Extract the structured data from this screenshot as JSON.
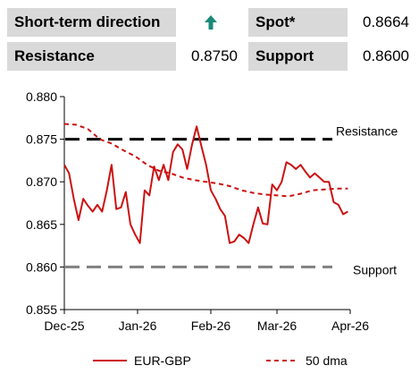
{
  "table": {
    "short_term_label": "Short-term direction",
    "direction_icon": "up-arrow-icon",
    "direction_color": "#1a8a7a",
    "spot_label": "Spot*",
    "spot_value": "0.8664",
    "resistance_label": "Resistance",
    "resistance_value": "0.8750",
    "support_label": "Support",
    "support_value": "0.8600"
  },
  "chart_data": {
    "type": "line",
    "ylim": [
      0.855,
      0.88
    ],
    "yticks": [
      "0.880",
      "0.875",
      "0.870",
      "0.865",
      "0.860",
      "0.855"
    ],
    "ytick_values": [
      0.88,
      0.875,
      0.87,
      0.865,
      0.86,
      0.855
    ],
    "xtick_labels": [
      "Dec-25",
      "Jan-26",
      "Feb-26",
      "Mar-26",
      "Apr-26"
    ],
    "xtick_dates": [
      "2025-12-01",
      "2026-01-01",
      "2026-02-01",
      "2026-03-01",
      "2026-04-01"
    ],
    "xlim": [
      "2025-12-01",
      "2026-04-01"
    ],
    "grid": false,
    "legend_position": "bottom",
    "colors": {
      "series": "#cc1111",
      "resistance": "#000000",
      "support": "#808080"
    },
    "hlines": [
      {
        "label": "Resistance",
        "y": 0.875
      },
      {
        "label": "Support",
        "y": 0.86
      }
    ],
    "series": [
      {
        "name": "EUR-GBP",
        "style": "solid",
        "x": [
          "2025-12-01",
          "2025-12-03",
          "2025-12-05",
          "2025-12-07",
          "2025-12-09",
          "2025-12-11",
          "2025-12-13",
          "2025-12-15",
          "2025-12-17",
          "2025-12-19",
          "2025-12-21",
          "2025-12-23",
          "2025-12-25",
          "2025-12-27",
          "2025-12-29",
          "2025-12-31",
          "2026-01-02",
          "2026-01-04",
          "2026-01-06",
          "2026-01-08",
          "2026-01-10",
          "2026-01-12",
          "2026-01-14",
          "2026-01-16",
          "2026-01-18",
          "2026-01-20",
          "2026-01-22",
          "2026-01-24",
          "2026-01-26",
          "2026-01-28",
          "2026-01-30",
          "2026-02-01",
          "2026-02-03",
          "2026-02-05",
          "2026-02-07",
          "2026-02-09",
          "2026-02-11",
          "2026-02-13",
          "2026-02-15",
          "2026-02-17",
          "2026-02-19",
          "2026-02-21",
          "2026-02-23",
          "2026-02-25",
          "2026-02-27",
          "2026-03-01",
          "2026-03-03",
          "2026-03-05",
          "2026-03-07",
          "2026-03-09",
          "2026-03-11",
          "2026-03-13",
          "2026-03-15",
          "2026-03-17",
          "2026-03-19",
          "2026-03-21",
          "2026-03-23",
          "2026-03-25",
          "2026-03-27",
          "2026-03-29",
          "2026-03-31"
        ],
        "y": [
          0.872,
          0.871,
          0.868,
          0.8655,
          0.868,
          0.8672,
          0.8665,
          0.8673,
          0.8665,
          0.869,
          0.872,
          0.8668,
          0.867,
          0.8688,
          0.865,
          0.8638,
          0.8628,
          0.869,
          0.8684,
          0.8718,
          0.8702,
          0.872,
          0.8702,
          0.8735,
          0.8744,
          0.8738,
          0.8715,
          0.8743,
          0.8765,
          0.8742,
          0.872,
          0.869,
          0.868,
          0.8668,
          0.866,
          0.8628,
          0.863,
          0.8638,
          0.8634,
          0.8628,
          0.865,
          0.867,
          0.8651,
          0.865,
          0.8697,
          0.869,
          0.87,
          0.8723,
          0.872,
          0.8715,
          0.872,
          0.8712,
          0.8705,
          0.871,
          0.8705,
          0.87,
          0.87,
          0.8676,
          0.8673,
          0.8662,
          0.8665
        ]
      },
      {
        "name": "50 dma",
        "style": "dashed",
        "x": [
          "2025-12-01",
          "2025-12-06",
          "2025-12-11",
          "2025-12-16",
          "2025-12-21",
          "2025-12-26",
          "2025-12-31",
          "2026-01-05",
          "2026-01-10",
          "2026-01-15",
          "2026-01-20",
          "2026-01-25",
          "2026-01-30",
          "2026-02-04",
          "2026-02-09",
          "2026-02-14",
          "2026-02-19",
          "2026-02-24",
          "2026-03-01",
          "2026-03-06",
          "2026-03-11",
          "2026-03-16",
          "2026-03-21",
          "2026-03-26",
          "2026-03-31"
        ],
        "y": [
          0.8768,
          0.8767,
          0.8762,
          0.875,
          0.8745,
          0.8737,
          0.873,
          0.872,
          0.8713,
          0.871,
          0.8705,
          0.8702,
          0.87,
          0.8698,
          0.8695,
          0.869,
          0.8687,
          0.8685,
          0.8684,
          0.8683,
          0.8686,
          0.869,
          0.8691,
          0.8692,
          0.8692
        ]
      }
    ]
  }
}
